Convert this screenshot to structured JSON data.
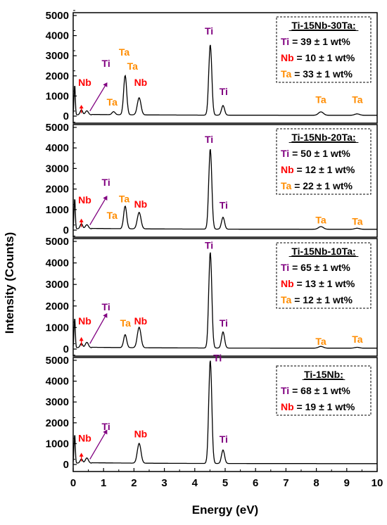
{
  "chart_data": {
    "type": "line",
    "xlabel": "Energy (eV)",
    "ylabel": "Intensity (Counts)",
    "xlim": [
      0,
      10
    ],
    "ylim": [
      0,
      5000
    ],
    "x_ticks": [
      "0",
      "1",
      "2",
      "3",
      "4",
      "5",
      "6",
      "7",
      "8",
      "9",
      "10"
    ],
    "y_ticks": [
      "0",
      "1000",
      "2000",
      "3000",
      "4000",
      "5000"
    ],
    "colors": {
      "Ti": "#800080",
      "Nb": "#ff0000",
      "Ta": "#ff8c00",
      "line": "#000000"
    },
    "panels": [
      {
        "name": "Ti-15Nb-30Ta",
        "box_title": "Ti-15Nb-30Ta:",
        "composition": [
          {
            "element": "Ti",
            "rest": " = 39 ± 1 wt%"
          },
          {
            "element": "Nb",
            "rest": " = 10 ± 1 wt%"
          },
          {
            "element": "Ta",
            "rest": " = 33 ± 1 wt%"
          }
        ],
        "peaks": [
          {
            "x": 0.05,
            "y": 1500,
            "w": 0.02
          },
          {
            "x": 0.27,
            "y": 250,
            "w": 0.04
          },
          {
            "x": 0.45,
            "y": 200,
            "w": 0.05
          },
          {
            "x": 1.33,
            "y": 150,
            "w": 0.05
          },
          {
            "x": 1.71,
            "y": 1950,
            "w": 0.05
          },
          {
            "x": 2.17,
            "y": 850,
            "w": 0.06
          },
          {
            "x": 4.51,
            "y": 3500,
            "w": 0.05
          },
          {
            "x": 4.93,
            "y": 480,
            "w": 0.05
          },
          {
            "x": 8.15,
            "y": 170,
            "w": 0.08
          },
          {
            "x": 9.34,
            "y": 70,
            "w": 0.08
          }
        ],
        "labels": [
          {
            "text": "Nb",
            "el": "Nb",
            "x": 0.38,
            "y": 1500
          },
          {
            "text": "Ti",
            "el": "Ti",
            "x": 1.08,
            "y": 2450
          },
          {
            "text": "Ta",
            "el": "Ta",
            "x": 1.28,
            "y": 530
          },
          {
            "text": "Ta",
            "el": "Ta",
            "x": 1.68,
            "y": 3000
          },
          {
            "text": "Ta",
            "el": "Ta",
            "x": 1.95,
            "y": 2300
          },
          {
            "text": "Nb",
            "el": "Nb",
            "x": 2.22,
            "y": 1500
          },
          {
            "text": "Ti",
            "el": "Ti",
            "x": 4.47,
            "y": 4050
          },
          {
            "text": "Ti",
            "el": "Ti",
            "x": 4.95,
            "y": 1050
          },
          {
            "text": "Ta",
            "el": "Ta",
            "x": 8.15,
            "y": 650
          },
          {
            "text": "Ta",
            "el": "Ta",
            "x": 9.35,
            "y": 650
          }
        ]
      },
      {
        "name": "Ti-15Nb-20Ta",
        "box_title": "Ti-15Nb-20Ta:",
        "composition": [
          {
            "element": "Ti",
            "rest": " = 50 ± 1 wt%"
          },
          {
            "element": "Nb",
            "rest": " = 12 ± 1 wt%"
          },
          {
            "element": "Ta",
            "rest": " = 22 ± 1 wt%"
          }
        ],
        "peaks": [
          {
            "x": 0.05,
            "y": 1500,
            "w": 0.02
          },
          {
            "x": 0.27,
            "y": 250,
            "w": 0.04
          },
          {
            "x": 0.45,
            "y": 200,
            "w": 0.05
          },
          {
            "x": 1.71,
            "y": 1100,
            "w": 0.05
          },
          {
            "x": 2.17,
            "y": 800,
            "w": 0.06
          },
          {
            "x": 4.51,
            "y": 3900,
            "w": 0.05
          },
          {
            "x": 4.93,
            "y": 580,
            "w": 0.05
          },
          {
            "x": 8.15,
            "y": 130,
            "w": 0.08
          },
          {
            "x": 9.34,
            "y": 50,
            "w": 0.08
          }
        ],
        "labels": [
          {
            "text": "Nb",
            "el": "Nb",
            "x": 0.38,
            "y": 1300
          },
          {
            "text": "Ti",
            "el": "Ti",
            "x": 1.08,
            "y": 2150
          },
          {
            "text": "Ta",
            "el": "Ta",
            "x": 1.28,
            "y": 550
          },
          {
            "text": "Ta",
            "el": "Ta",
            "x": 1.68,
            "y": 1350
          },
          {
            "text": "Nb",
            "el": "Nb",
            "x": 2.22,
            "y": 1100
          },
          {
            "text": "Ti",
            "el": "Ti",
            "x": 4.47,
            "y": 4250
          },
          {
            "text": "Ti",
            "el": "Ti",
            "x": 4.95,
            "y": 1050
          },
          {
            "text": "Ta",
            "el": "Ta",
            "x": 8.15,
            "y": 320
          },
          {
            "text": "Ta",
            "el": "Ta",
            "x": 9.35,
            "y": 250
          }
        ]
      },
      {
        "name": "Ti-15Nb-10Ta",
        "box_title": "Ti-15Nb-10Ta:",
        "composition": [
          {
            "element": "Ti",
            "rest": " = 65 ± 1 wt%"
          },
          {
            "element": "Nb",
            "rest": " = 13 ± 1 wt%"
          },
          {
            "element": "Ta",
            "rest": " = 12 ± 1 wt%"
          }
        ],
        "peaks": [
          {
            "x": 0.05,
            "y": 1400,
            "w": 0.02
          },
          {
            "x": 0.27,
            "y": 200,
            "w": 0.04
          },
          {
            "x": 0.45,
            "y": 250,
            "w": 0.05
          },
          {
            "x": 1.71,
            "y": 600,
            "w": 0.05
          },
          {
            "x": 2.17,
            "y": 950,
            "w": 0.06
          },
          {
            "x": 4.51,
            "y": 4450,
            "w": 0.05
          },
          {
            "x": 4.93,
            "y": 750,
            "w": 0.05
          },
          {
            "x": 8.15,
            "y": 80,
            "w": 0.08
          },
          {
            "x": 9.34,
            "y": 40,
            "w": 0.08
          }
        ],
        "labels": [
          {
            "text": "Nb",
            "el": "Nb",
            "x": 0.38,
            "y": 1150
          },
          {
            "text": "Ti",
            "el": "Ti",
            "x": 1.08,
            "y": 1800
          },
          {
            "text": "Ta",
            "el": "Ta",
            "x": 1.72,
            "y": 1050
          },
          {
            "text": "Nb",
            "el": "Nb",
            "x": 2.22,
            "y": 1150
          },
          {
            "text": "Ti",
            "el": "Ti",
            "x": 4.47,
            "y": 4650
          },
          {
            "text": "Ti",
            "el": "Ti",
            "x": 4.95,
            "y": 1050
          },
          {
            "text": "Ta",
            "el": "Ta",
            "x": 8.15,
            "y": 200
          },
          {
            "text": "Ta",
            "el": "Ta",
            "x": 9.35,
            "y": 300
          }
        ]
      },
      {
        "name": "Ti-15Nb",
        "box_title": "Ti-15Nb:",
        "composition": [
          {
            "element": "Ti",
            "rest": " = 68 ± 1 wt%"
          },
          {
            "element": "Nb",
            "rest": " = 19 ± 1 wt%"
          }
        ],
        "peaks": [
          {
            "x": 0.05,
            "y": 1400,
            "w": 0.02
          },
          {
            "x": 0.27,
            "y": 200,
            "w": 0.04
          },
          {
            "x": 0.45,
            "y": 250,
            "w": 0.05
          },
          {
            "x": 2.17,
            "y": 950,
            "w": 0.06
          },
          {
            "x": 4.51,
            "y": 4950,
            "w": 0.05
          },
          {
            "x": 4.93,
            "y": 650,
            "w": 0.05
          }
        ],
        "labels": [
          {
            "text": "Nb",
            "el": "Nb",
            "x": 0.38,
            "y": 1100
          },
          {
            "text": "Ti",
            "el": "Ti",
            "x": 1.08,
            "y": 1650
          },
          {
            "text": "Nb",
            "el": "Nb",
            "x": 2.22,
            "y": 1300
          },
          {
            "text": "Ti",
            "el": "Ti",
            "x": 4.75,
            "y": 4950
          },
          {
            "text": "Ti",
            "el": "Ti",
            "x": 4.95,
            "y": 1050
          }
        ]
      }
    ]
  }
}
